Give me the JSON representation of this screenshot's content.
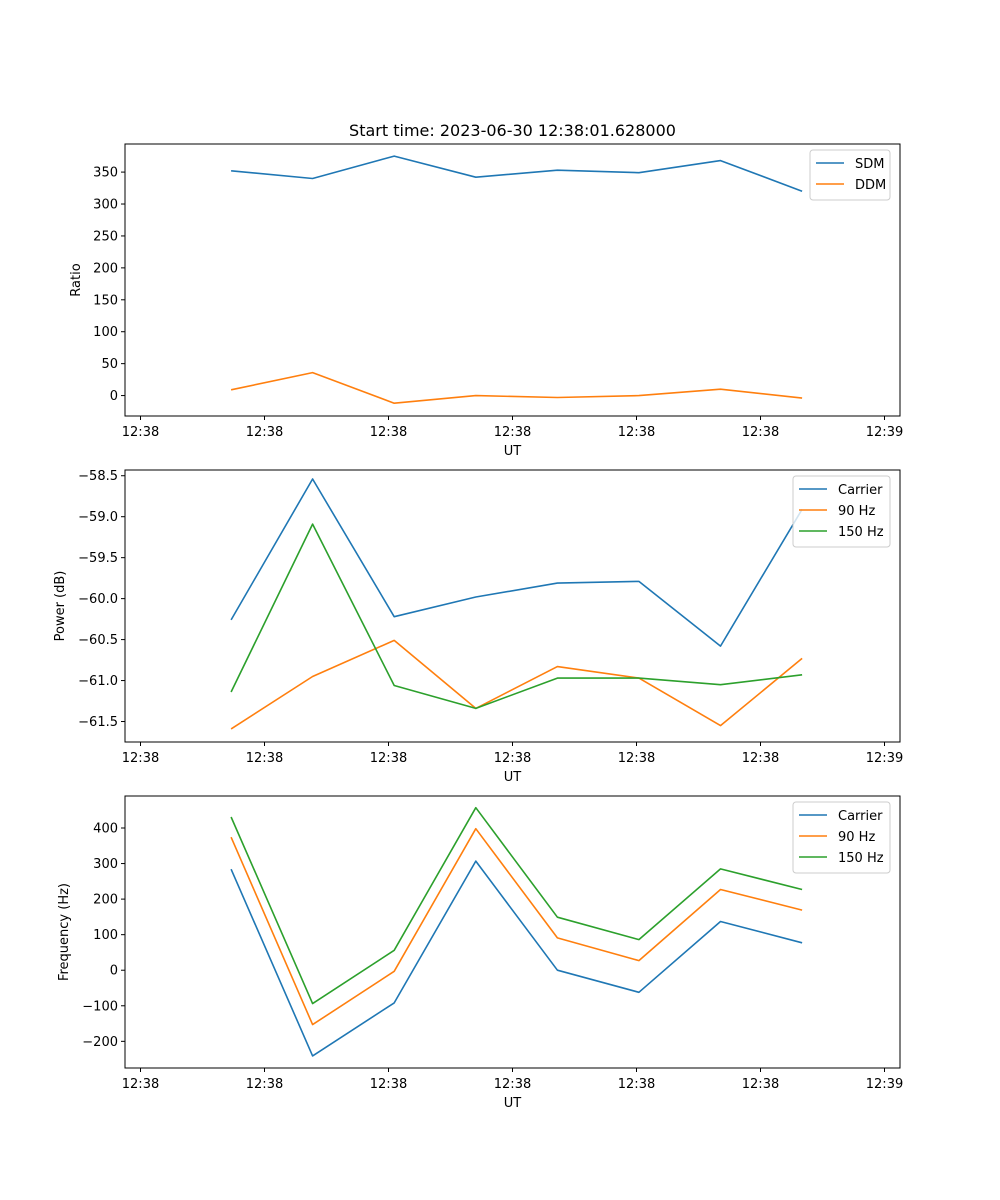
{
  "figure": {
    "title": "Start time: 2023-06-30 12:38:01.628000"
  },
  "chart_data": [
    {
      "type": "line",
      "title": "Start time: 2023-06-30 12:38:01.628000",
      "xlabel": "UT",
      "ylabel": "Ratio",
      "x": [
        1,
        2,
        3,
        4,
        5,
        6,
        7,
        8
      ],
      "xlim": [
        -0.3,
        9.2
      ],
      "x_ticks": [
        -0.11,
        1.41,
        2.93,
        4.45,
        5.97,
        7.49,
        9.01
      ],
      "x_tick_labels": [
        "12:38",
        "12:38",
        "12:38",
        "12:38",
        "12:38",
        "12:38",
        "12:39"
      ],
      "ylim": [
        -32,
        394
      ],
      "y_ticks": [
        0,
        50,
        100,
        150,
        200,
        250,
        300,
        350
      ],
      "y_tick_labels": [
        "0",
        "50",
        "100",
        "150",
        "200",
        "250",
        "300",
        "350"
      ],
      "legend": "top-right",
      "grid": false,
      "series": [
        {
          "name": "SDM",
          "color": "#1f77b4",
          "values": [
            352,
            340,
            375,
            342,
            353,
            349,
            368,
            320
          ]
        },
        {
          "name": "DDM",
          "color": "#ff7f0e",
          "values": [
            9,
            36,
            -12,
            0,
            -3,
            0,
            10,
            -4
          ]
        }
      ]
    },
    {
      "type": "line",
      "title": "",
      "xlabel": "UT",
      "ylabel": "Power (dB)",
      "x": [
        1,
        2,
        3,
        4,
        5,
        6,
        7,
        8
      ],
      "xlim": [
        -0.3,
        9.2
      ],
      "x_ticks": [
        -0.11,
        1.41,
        2.93,
        4.45,
        5.97,
        7.49,
        9.01
      ],
      "x_tick_labels": [
        "12:38",
        "12:38",
        "12:38",
        "12:38",
        "12:38",
        "12:38",
        "12:39"
      ],
      "ylim": [
        -61.75,
        -58.43
      ],
      "y_ticks": [
        -61.5,
        -61.0,
        -60.5,
        -60.0,
        -59.5,
        -59.0,
        -58.5
      ],
      "y_tick_labels": [
        "−61.5",
        "−61.0",
        "−60.5",
        "−60.0",
        "−59.5",
        "−59.0",
        "−58.5"
      ],
      "legend": "top-right",
      "grid": false,
      "series": [
        {
          "name": "Carrier",
          "color": "#1f77b4",
          "values": [
            -60.26,
            -58.54,
            -60.22,
            -59.98,
            -59.81,
            -59.79,
            -60.58,
            -58.91
          ]
        },
        {
          "name": "90 Hz",
          "color": "#ff7f0e",
          "values": [
            -61.59,
            -60.95,
            -60.51,
            -61.34,
            -60.83,
            -60.97,
            -61.55,
            -60.73
          ]
        },
        {
          "name": "150 Hz",
          "color": "#2ca02c",
          "values": [
            -61.14,
            -59.09,
            -61.06,
            -61.34,
            -60.97,
            -60.97,
            -61.05,
            -60.93
          ]
        }
      ]
    },
    {
      "type": "line",
      "title": "",
      "xlabel": "UT",
      "ylabel": "Frequency (Hz)",
      "x": [
        1,
        2,
        3,
        4,
        5,
        6,
        7,
        8
      ],
      "xlim": [
        -0.3,
        9.2
      ],
      "x_ticks": [
        -0.11,
        1.41,
        2.93,
        4.45,
        5.97,
        7.49,
        9.01
      ],
      "x_tick_labels": [
        "12:38",
        "12:38",
        "12:38",
        "12:38",
        "12:38",
        "12:38",
        "12:39"
      ],
      "ylim": [
        -275,
        490
      ],
      "y_ticks": [
        -200,
        -100,
        0,
        100,
        200,
        300,
        400
      ],
      "y_tick_labels": [
        "−200",
        "−100",
        "0",
        "100",
        "200",
        "300",
        "400"
      ],
      "legend": "top-right",
      "grid": false,
      "series": [
        {
          "name": "Carrier",
          "color": "#1f77b4",
          "values": [
            284,
            -241,
            -92,
            307,
            0,
            -62,
            137,
            77
          ]
        },
        {
          "name": "90 Hz",
          "color": "#ff7f0e",
          "values": [
            374,
            -153,
            -3,
            398,
            91,
            27,
            227,
            169
          ]
        },
        {
          "name": "150 Hz",
          "color": "#2ca02c",
          "values": [
            431,
            -94,
            56,
            457,
            149,
            86,
            285,
            227
          ]
        }
      ]
    }
  ]
}
